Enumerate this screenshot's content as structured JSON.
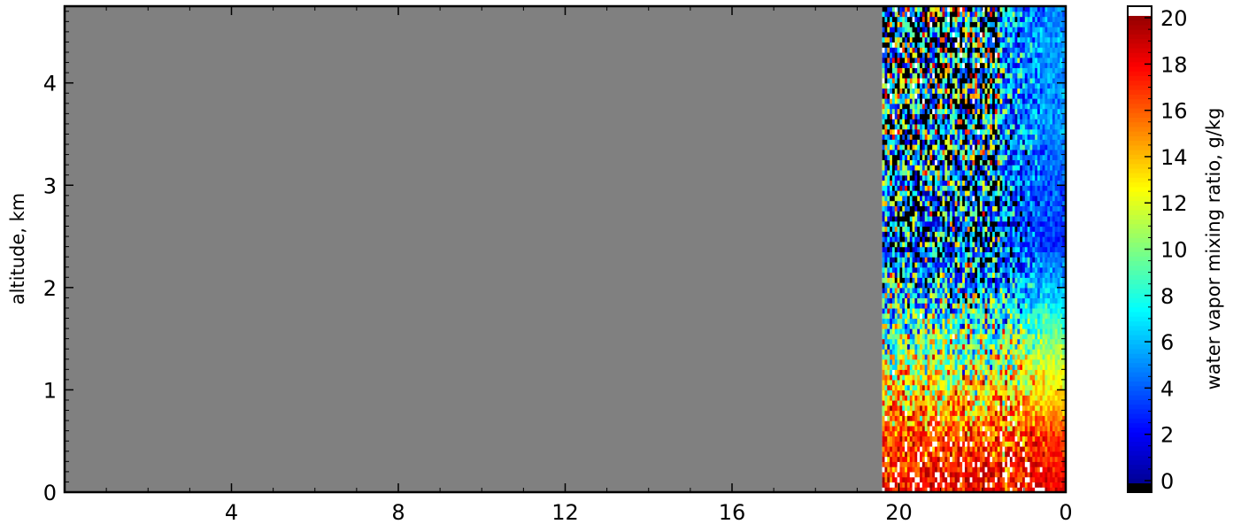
{
  "chart_data": {
    "type": "heatmap",
    "title": "",
    "xlabel": "",
    "ylabel": "altitude, km",
    "x_tick_labels": [
      "4",
      "8",
      "12",
      "16",
      "20",
      "0"
    ],
    "y_ticks": [
      0,
      1,
      2,
      3,
      4
    ],
    "ylim": [
      0,
      4.75
    ],
    "x_major_ticks": [
      4,
      8,
      12,
      16,
      20,
      24
    ],
    "x_minor_ticks": [
      1,
      2,
      3,
      5,
      6,
      7,
      9,
      10,
      11,
      13,
      14,
      15,
      17,
      18,
      19,
      21,
      22,
      23
    ],
    "xlim": [
      0,
      24
    ],
    "no_data_range_x": [
      0,
      19.6
    ],
    "no_data_color": "#808080",
    "colorbar": {
      "label": "water vapor mixing ratio, g/kg",
      "ticks": [
        0,
        2,
        4,
        6,
        8,
        10,
        12,
        14,
        16,
        18,
        20
      ],
      "range": [
        -0.5,
        20.5
      ],
      "colormap": "jet",
      "under_color": "#000000",
      "over_color": "#ffffff"
    },
    "profile_by_altitude": [
      {
        "altitude_km": 0.0,
        "mixing_ratio_gkg": 18.5
      },
      {
        "altitude_km": 0.5,
        "mixing_ratio_gkg": 17.0
      },
      {
        "altitude_km": 1.0,
        "mixing_ratio_gkg": 13.0
      },
      {
        "altitude_km": 1.5,
        "mixing_ratio_gkg": 10.0
      },
      {
        "altitude_km": 2.0,
        "mixing_ratio_gkg": 6.0
      },
      {
        "altitude_km": 2.5,
        "mixing_ratio_gkg": 3.0
      },
      {
        "altitude_km": 3.0,
        "mixing_ratio_gkg": 4.0
      },
      {
        "altitude_km": 3.5,
        "mixing_ratio_gkg": 5.0
      },
      {
        "altitude_km": 4.0,
        "mixing_ratio_gkg": 5.5
      },
      {
        "altitude_km": 4.75,
        "mixing_ratio_gkg": 5.0
      }
    ],
    "noisy_region_x": [
      19.6,
      22.4
    ]
  }
}
